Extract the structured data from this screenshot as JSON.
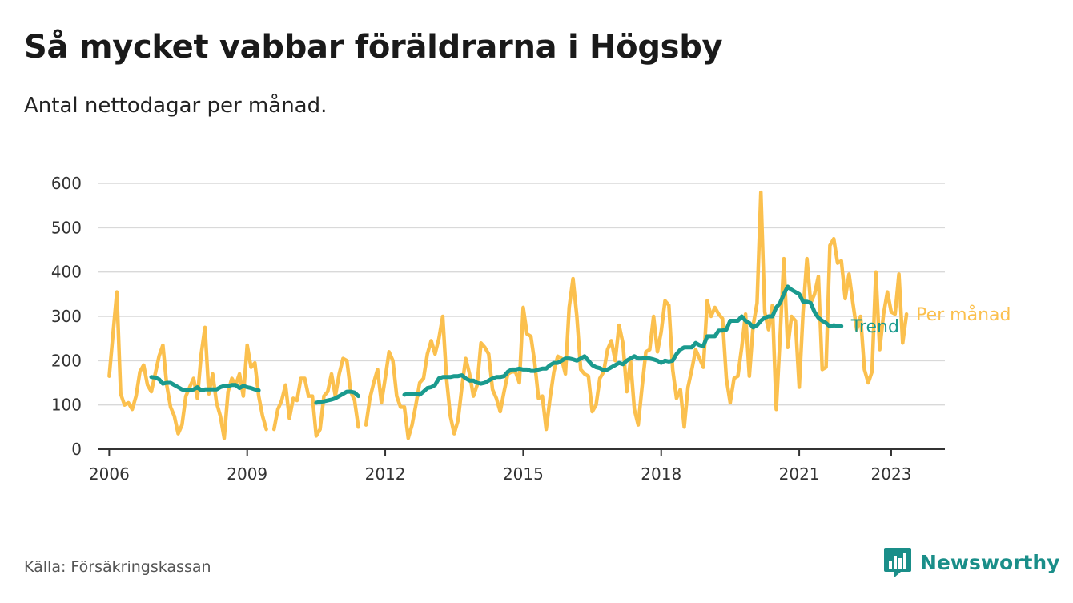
{
  "header": {
    "title": "Så mycket vabbar föräldrarna i Högsby",
    "subtitle": "Antal nettodagar per månad."
  },
  "footer": {
    "source": "Källa: Försäkringskassan",
    "brand": "Newsworthy",
    "brand_icon": "bar-chart-speech-bubble-icon"
  },
  "colors": {
    "monthly": "#fbc04e",
    "trend": "#1a9a8e",
    "grid": "#d9d9d9",
    "axis": "#333333",
    "brand": "#1a8e89"
  },
  "chart_data": {
    "type": "line",
    "y_ticks": [
      0,
      100,
      200,
      300,
      400,
      500,
      600
    ],
    "ylim": [
      0,
      600
    ],
    "x_ticks": [
      "2006",
      "2009",
      "2012",
      "2015",
      "2018",
      "2021",
      "2023"
    ],
    "xlim": [
      "2005-10",
      "2024-03"
    ],
    "grid": "horizontal",
    "legend": "direct labels at line ends (right)",
    "series": [
      {
        "name": "Per månad",
        "segments": [
          {
            "start": "2006-01",
            "values": [
              165,
              260,
              355,
              125,
              100,
              105,
              90,
              120,
              175,
              190,
              145,
              130,
              170,
              210,
              235,
              145,
              95,
              75,
              35,
              55,
              120,
              140,
              160,
              115,
              215,
              275,
              125,
              170,
              105,
              75,
              25,
              130,
              160,
              145,
              170,
              120,
              235,
              185,
              195,
              120,
              75,
              45
            ]
          },
          {
            "start": "2009-08",
            "values": [
              45,
              90,
              110,
              145,
              70,
              115,
              110,
              160,
              160,
              120,
              120,
              30,
              45,
              120,
              130,
              170,
              120,
              170,
              205,
              200,
              130,
              110,
              50
            ]
          },
          {
            "start": "2011-08",
            "values": [
              55,
              115,
              150,
              180,
              105,
              160,
              220,
              200,
              120,
              95,
              95,
              25,
              55,
              100,
              150,
              160,
              215,
              245,
              215,
              250,
              300,
              160,
              75,
              35,
              65,
              140,
              205,
              170,
              120,
              145,
              240,
              230,
              215,
              135,
              115,
              85,
              130,
              170,
              175,
              175,
              150,
              320,
              260,
              255,
              195,
              115,
              120,
              45,
              115,
              175,
              210,
              205,
              170,
              320,
              385,
              300,
              180,
              170,
              165,
              85,
              100,
              160,
              175,
              225,
              245,
              200,
              280,
              240,
              130,
              200,
              90,
              55,
              140,
              220,
              225,
              300,
              220,
              265,
              335,
              325,
              180,
              115,
              135,
              50,
              140,
              180,
              225,
              205,
              185,
              335,
              300,
              320,
              305,
              295,
              160,
              105,
              160,
              165,
              230,
              305,
              165,
              280,
              330,
              580,
              310,
              270,
              325,
              90,
              250,
              430,
              230,
              300,
              290,
              140,
              310,
              430,
              330,
              350,
              390,
              180,
              185,
              460,
              475,
              420,
              425,
              340,
              395,
              330,
              270,
              300,
              180,
              150,
              175,
              400,
              225,
              305,
              355,
              310,
              305,
              395,
              240,
              305
            ]
          }
        ]
      },
      {
        "name": "Trend",
        "segments": [
          {
            "start": "2006-12",
            "values": [
              163,
              162,
              158,
              148,
              150,
              150,
              145,
              140,
              135,
              133,
              133,
              135,
              140,
              133,
              135,
              135,
              135,
              135,
              140,
              143,
              143,
              145,
              145,
              138,
              143,
              140,
              138,
              135,
              133
            ]
          },
          {
            "start": "2010-07",
            "values": [
              105,
              107,
              108,
              110,
              112,
              115,
              120,
              125,
              130,
              130,
              128,
              120
            ]
          },
          {
            "start": "2012-06",
            "values": [
              123,
              125,
              125,
              125,
              123,
              130,
              138,
              140,
              145,
              160,
              163,
              163,
              163,
              165,
              165,
              167,
              160,
              155,
              155,
              150,
              148,
              150,
              155,
              160,
              163,
              163,
              165,
              175,
              180,
              180,
              182,
              180,
              180,
              177,
              177,
              180,
              182,
              182,
              190,
              195,
              195,
              200,
              205,
              205,
              203,
              200,
              205,
              210,
              200,
              190,
              185,
              183,
              178,
              180,
              185,
              190,
              195,
              192,
              200,
              205,
              210,
              205,
              205,
              207,
              205,
              203,
              200,
              195,
              200,
              198,
              200,
              215,
              225,
              230,
              230,
              230,
              240,
              235,
              233,
              255,
              255,
              255,
              268,
              268,
              270,
              290,
              290,
              290,
              300,
              290,
              285,
              275,
              280,
              290,
              297,
              300,
              300,
              320,
              330,
              350,
              367,
              360,
              355,
              350,
              333,
              333,
              330,
              310,
              297,
              290,
              285,
              277,
              280,
              278,
              278
            ]
          }
        ]
      }
    ]
  }
}
